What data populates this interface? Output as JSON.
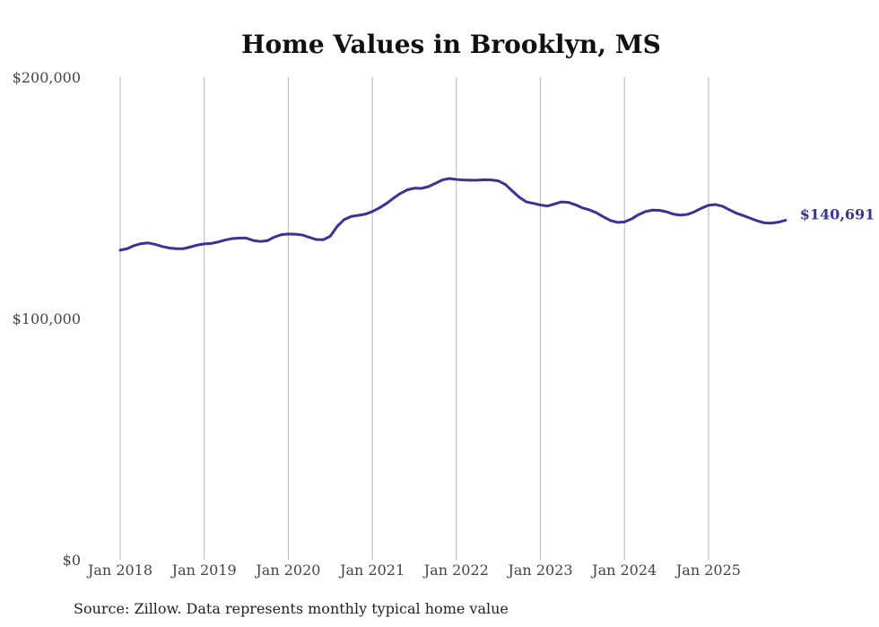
{
  "chart_data": {
    "type": "line",
    "title": "Home Values in Brooklyn, MS",
    "source": "Source: Zillow. Data represents monthly typical home value",
    "xlabel": "",
    "ylabel": "",
    "ylim": [
      0,
      200000
    ],
    "yticks": [
      0,
      100000,
      200000
    ],
    "ytick_labels": [
      "$0",
      "$100,000",
      "$200,000"
    ],
    "xticks": [
      2018,
      2019,
      2020,
      2021,
      2022,
      2023,
      2024,
      2025
    ],
    "xtick_labels": [
      "Jan 2018",
      "Jan 2019",
      "Jan 2020",
      "Jan 2021",
      "Jan 2022",
      "Jan 2023",
      "Jan 2024",
      "Jan 2025"
    ],
    "grid": "vertical",
    "line_color": "#3b3294",
    "end_label": "$140,691",
    "series": [
      {
        "name": "Typical home value",
        "start_year": 2018,
        "start_month": 1,
        "values": [
          128300,
          128900,
          130200,
          131000,
          131300,
          130700,
          129800,
          129200,
          128900,
          128900,
          129600,
          130400,
          130900,
          131100,
          131700,
          132500,
          133100,
          133300,
          133300,
          132300,
          131900,
          132200,
          133700,
          134700,
          135000,
          134900,
          134600,
          133600,
          132700,
          132600,
          134100,
          138200,
          141000,
          142300,
          142700,
          143200,
          144300,
          145800,
          147600,
          149800,
          151800,
          153300,
          154000,
          153900,
          154600,
          156000,
          157400,
          158000,
          157600,
          157400,
          157300,
          157300,
          157500,
          157400,
          157000,
          155500,
          152800,
          150200,
          148300,
          147700,
          147000,
          146600,
          147400,
          148300,
          148100,
          147100,
          145800,
          145000,
          143800,
          142100,
          140600,
          139800,
          140000,
          141200,
          143000,
          144300,
          144900,
          144800,
          144200,
          143200,
          142800,
          143100,
          144200,
          145700,
          146900,
          147200,
          146500,
          145000,
          143600,
          142600,
          141500,
          140400,
          139600,
          139500,
          139900,
          140691
        ]
      }
    ]
  }
}
